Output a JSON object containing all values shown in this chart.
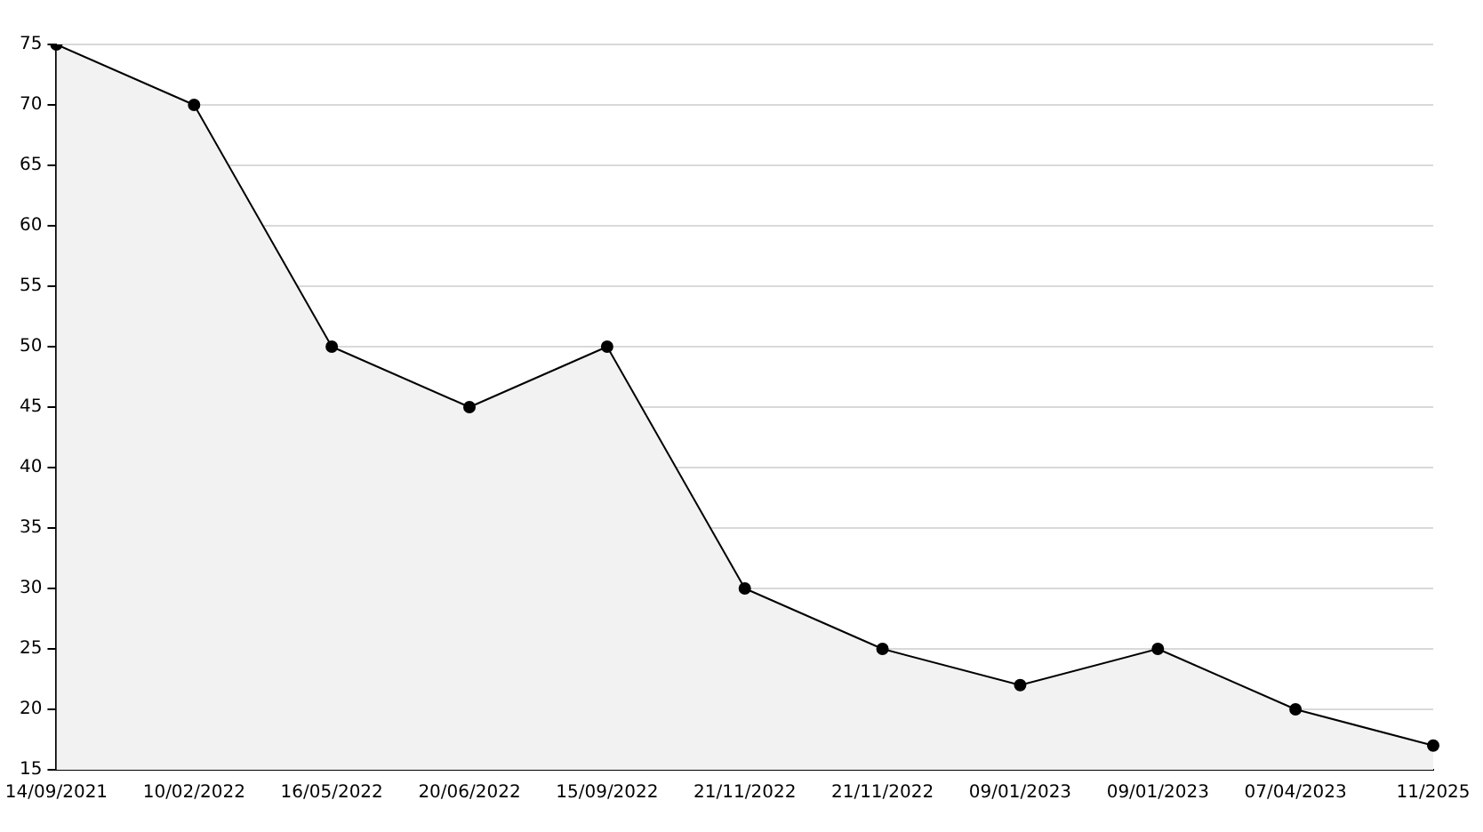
{
  "chart_data": {
    "type": "area",
    "categories": [
      "14/09/2021",
      "10/02/2022",
      "16/05/2022",
      "20/06/2022",
      "15/09/2022",
      "21/11/2022",
      "21/11/2022",
      "09/01/2023",
      "09/01/2023",
      "07/04/2023",
      "11/2025"
    ],
    "series": [
      {
        "color": "#000000",
        "values": [
          75,
          70,
          50,
          45,
          50,
          30,
          25,
          22,
          25,
          20,
          17
        ]
      }
    ],
    "ylim": [
      15,
      75
    ],
    "yticks": [
      15,
      20,
      25,
      30,
      35,
      40,
      45,
      50,
      55,
      60,
      65,
      70,
      75
    ],
    "grid": "y",
    "legend": false,
    "marker": "circle",
    "line_style": "solid"
  }
}
